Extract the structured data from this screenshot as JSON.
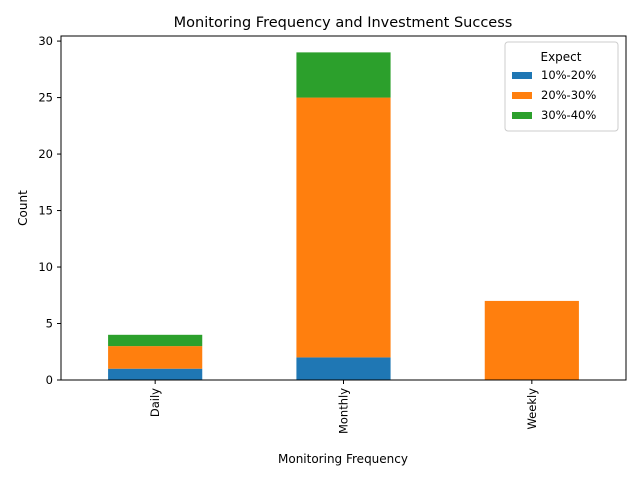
{
  "chart_data": {
    "type": "bar",
    "stacked": true,
    "title": "Monitoring Frequency and Investment Success",
    "xlabel": "Monitoring Frequency",
    "ylabel": "Count",
    "categories": [
      "Daily",
      "Monthly",
      "Weekly"
    ],
    "series": [
      {
        "name": "10%-20%",
        "values": [
          1,
          2,
          0
        ],
        "color": "#1f77b4"
      },
      {
        "name": "20%-30%",
        "values": [
          2,
          23,
          7
        ],
        "color": "#ff7f0e"
      },
      {
        "name": "30%-40%",
        "values": [
          1,
          4,
          0
        ],
        "color": "#2ca02c"
      }
    ],
    "ylim": [
      0,
      30.45
    ],
    "yticks": [
      "0",
      "5",
      "10",
      "15",
      "20",
      "25",
      "30"
    ],
    "legend": {
      "title": "Expect",
      "placement": "top-right"
    },
    "grid": false
  }
}
